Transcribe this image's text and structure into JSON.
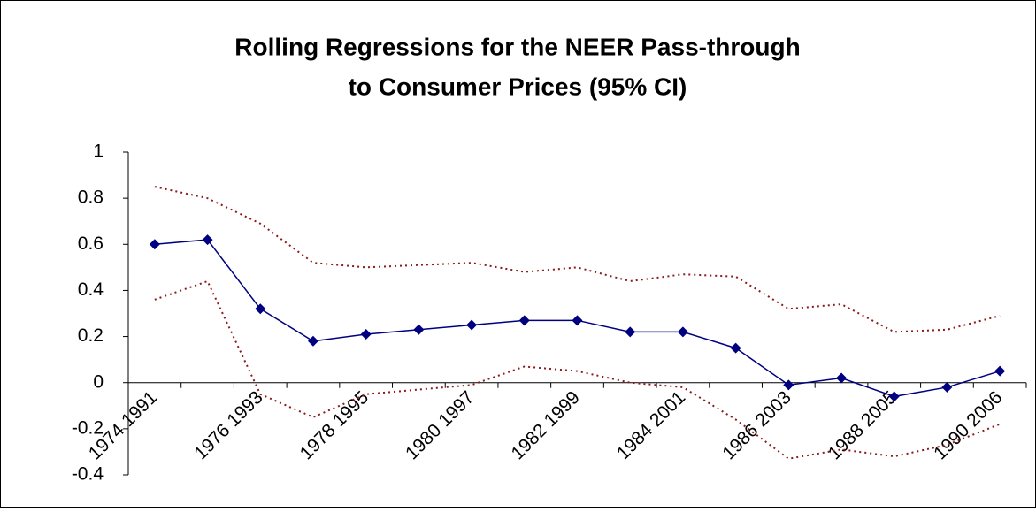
{
  "chart_data": {
    "type": "line",
    "title": [
      "Rolling Regressions for the NEER Pass-through",
      "to Consumer Prices (95% CI)"
    ],
    "categories": [
      "1974 1991",
      null,
      "1976 1993",
      null,
      "1978 1995",
      null,
      "1980 1997",
      null,
      "1982 1999",
      null,
      "1984 2001",
      null,
      "1986 2003",
      null,
      "1988 2005",
      null,
      "1990 2006"
    ],
    "series": [
      {
        "color": "#8b1a1a",
        "dash": true,
        "marker": false,
        "values": [
          0.85,
          0.8,
          0.69,
          0.52,
          0.5,
          0.51,
          0.52,
          0.48,
          0.5,
          0.44,
          0.47,
          0.46,
          0.32,
          0.34,
          0.22,
          0.23,
          0.29
        ]
      },
      {
        "color": "#8b1a1a",
        "dash": true,
        "marker": false,
        "values": [
          0.36,
          0.44,
          -0.05,
          -0.15,
          -0.05,
          -0.03,
          -0.01,
          0.07,
          0.05,
          0.0,
          -0.02,
          -0.16,
          -0.33,
          -0.29,
          -0.32,
          -0.27,
          -0.18
        ]
      },
      {
        "color": "#000080",
        "dash": false,
        "marker": true,
        "values": [
          0.6,
          0.62,
          0.32,
          0.18,
          0.21,
          0.23,
          0.25,
          0.27,
          0.27,
          0.22,
          0.22,
          0.15,
          -0.01,
          0.02,
          -0.06,
          -0.02,
          0.05
        ]
      }
    ],
    "ylim": [
      -0.4,
      1
    ],
    "yticks": [
      -0.4,
      -0.2,
      0,
      0.2,
      0.4,
      0.6,
      0.8,
      1
    ],
    "grid": false
  }
}
